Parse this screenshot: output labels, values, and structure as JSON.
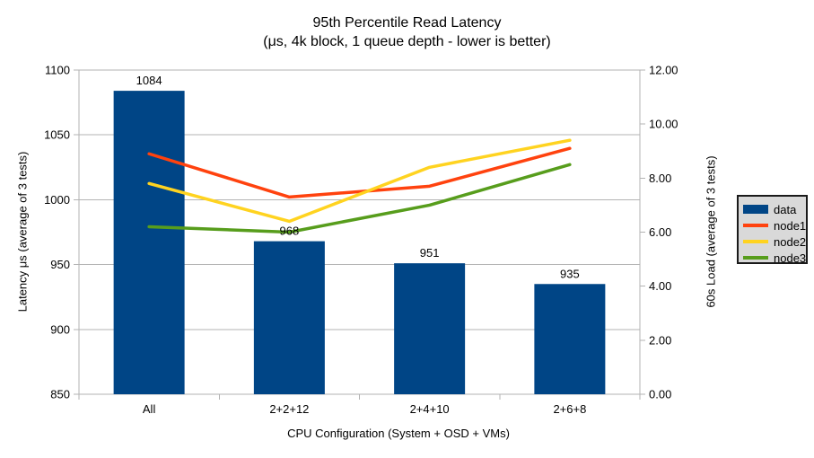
{
  "chart_data": {
    "type": "combo-bar-line",
    "title": "95th Percentile Read Latency",
    "subtitle": "(μs, 4k block, 1 queue depth - lower is better)",
    "categories": [
      "All",
      "2+2+12",
      "2+4+10",
      "2+6+8"
    ],
    "bar_series": {
      "name": "data",
      "color": "#004586",
      "axis": "left",
      "values": [
        1084,
        968,
        951,
        935
      ],
      "data_labels": [
        "1084",
        "968",
        "951",
        "935"
      ]
    },
    "line_series": [
      {
        "name": "node1",
        "color": "#ff420e",
        "axis": "right",
        "values": [
          8.9,
          7.3,
          7.7,
          9.1
        ]
      },
      {
        "name": "node2",
        "color": "#ffd320",
        "axis": "right",
        "values": [
          7.8,
          6.4,
          8.4,
          9.4
        ]
      },
      {
        "name": "node3",
        "color": "#579d1c",
        "axis": "right",
        "values": [
          6.2,
          6.0,
          7.0,
          8.5
        ]
      }
    ],
    "left_axis": {
      "title": "Latency μs (average of 3 tests)",
      "min": 850,
      "max": 1100,
      "tick_labels": [
        "850",
        "900",
        "950",
        "1000",
        "1050",
        "1100"
      ],
      "tick_values": [
        850,
        900,
        950,
        1000,
        1050,
        1100
      ]
    },
    "right_axis": {
      "title": "60s Load (average of 3 tests)",
      "min": 0,
      "max": 12,
      "tick_labels": [
        "0.00",
        "2.00",
        "4.00",
        "6.00",
        "8.00",
        "10.00",
        "12.00"
      ],
      "tick_values": [
        0,
        2,
        4,
        6,
        8,
        10,
        12
      ]
    },
    "x_axis": {
      "title": "CPU Configuration (System + OSD + VMs)"
    },
    "legend": {
      "position": "right",
      "entries": [
        {
          "label": "data",
          "color": "#004586",
          "kind": "box"
        },
        {
          "label": "node1",
          "color": "#ff420e",
          "kind": "line"
        },
        {
          "label": "node2",
          "color": "#ffd320",
          "kind": "line"
        },
        {
          "label": "node3",
          "color": "#579d1c",
          "kind": "line"
        }
      ]
    },
    "grid": {
      "horizontal": true,
      "color": "#b3b3b3"
    }
  }
}
